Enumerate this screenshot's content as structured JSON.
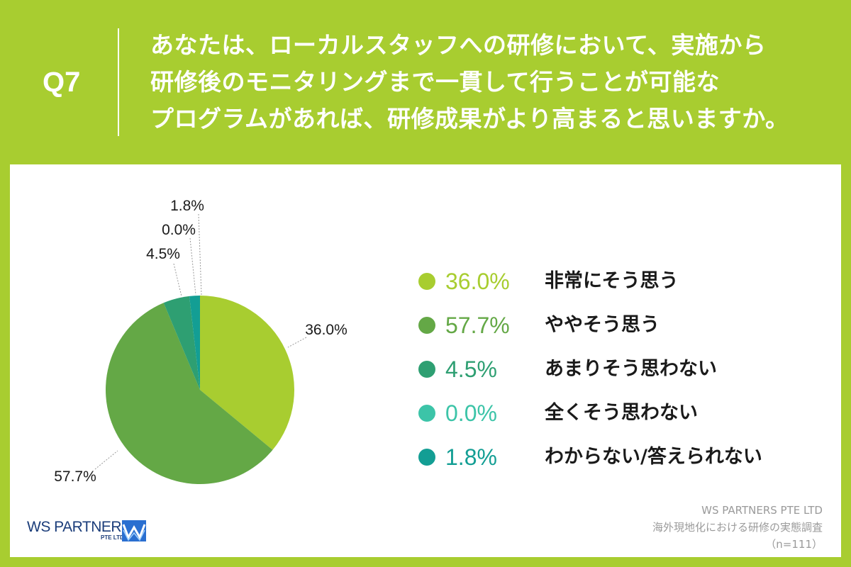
{
  "header": {
    "q_label": "Q7",
    "question_lines": [
      "あなたは、ローカルスタッフへの研修において、実施から",
      "研修後のモニタリングまで一貫して行うことが可能な",
      "プログラムがあれば、研修成果がより高まると思いますか。"
    ]
  },
  "colors": {
    "background": "#a8cd30",
    "panel": "#ffffff",
    "slices": [
      "#a8cd30",
      "#64a846",
      "#2e9f72",
      "#3cc4a8",
      "#139e94"
    ]
  },
  "chart_data": {
    "type": "pie",
    "start_angle": "12 o'clock",
    "direction": "clockwise",
    "slices": [
      {
        "label": "非常にそう思う",
        "value": 36.0,
        "display": "36.0%",
        "color": "#a8cd30"
      },
      {
        "label": "ややそう思う",
        "value": 57.7,
        "display": "57.7%",
        "color": "#64a846"
      },
      {
        "label": "あまりそう思わない",
        "value": 4.5,
        "display": "4.5%",
        "color": "#2e9f72"
      },
      {
        "label": "全くそう思わない",
        "value": 0.0,
        "display": "0.0%",
        "color": "#3cc4a8"
      },
      {
        "label": "わからない/答えられない",
        "value": 1.8,
        "display": "1.8%",
        "color": "#139e94"
      }
    ],
    "legend_position": "right"
  },
  "source": {
    "company": "WS PARTNERS PTE LTD",
    "survey": "海外現地化における研修の実態調査",
    "n": "（n=111）"
  },
  "logo": {
    "name": "WS PARTNERS",
    "sub": "PTE LTD"
  }
}
